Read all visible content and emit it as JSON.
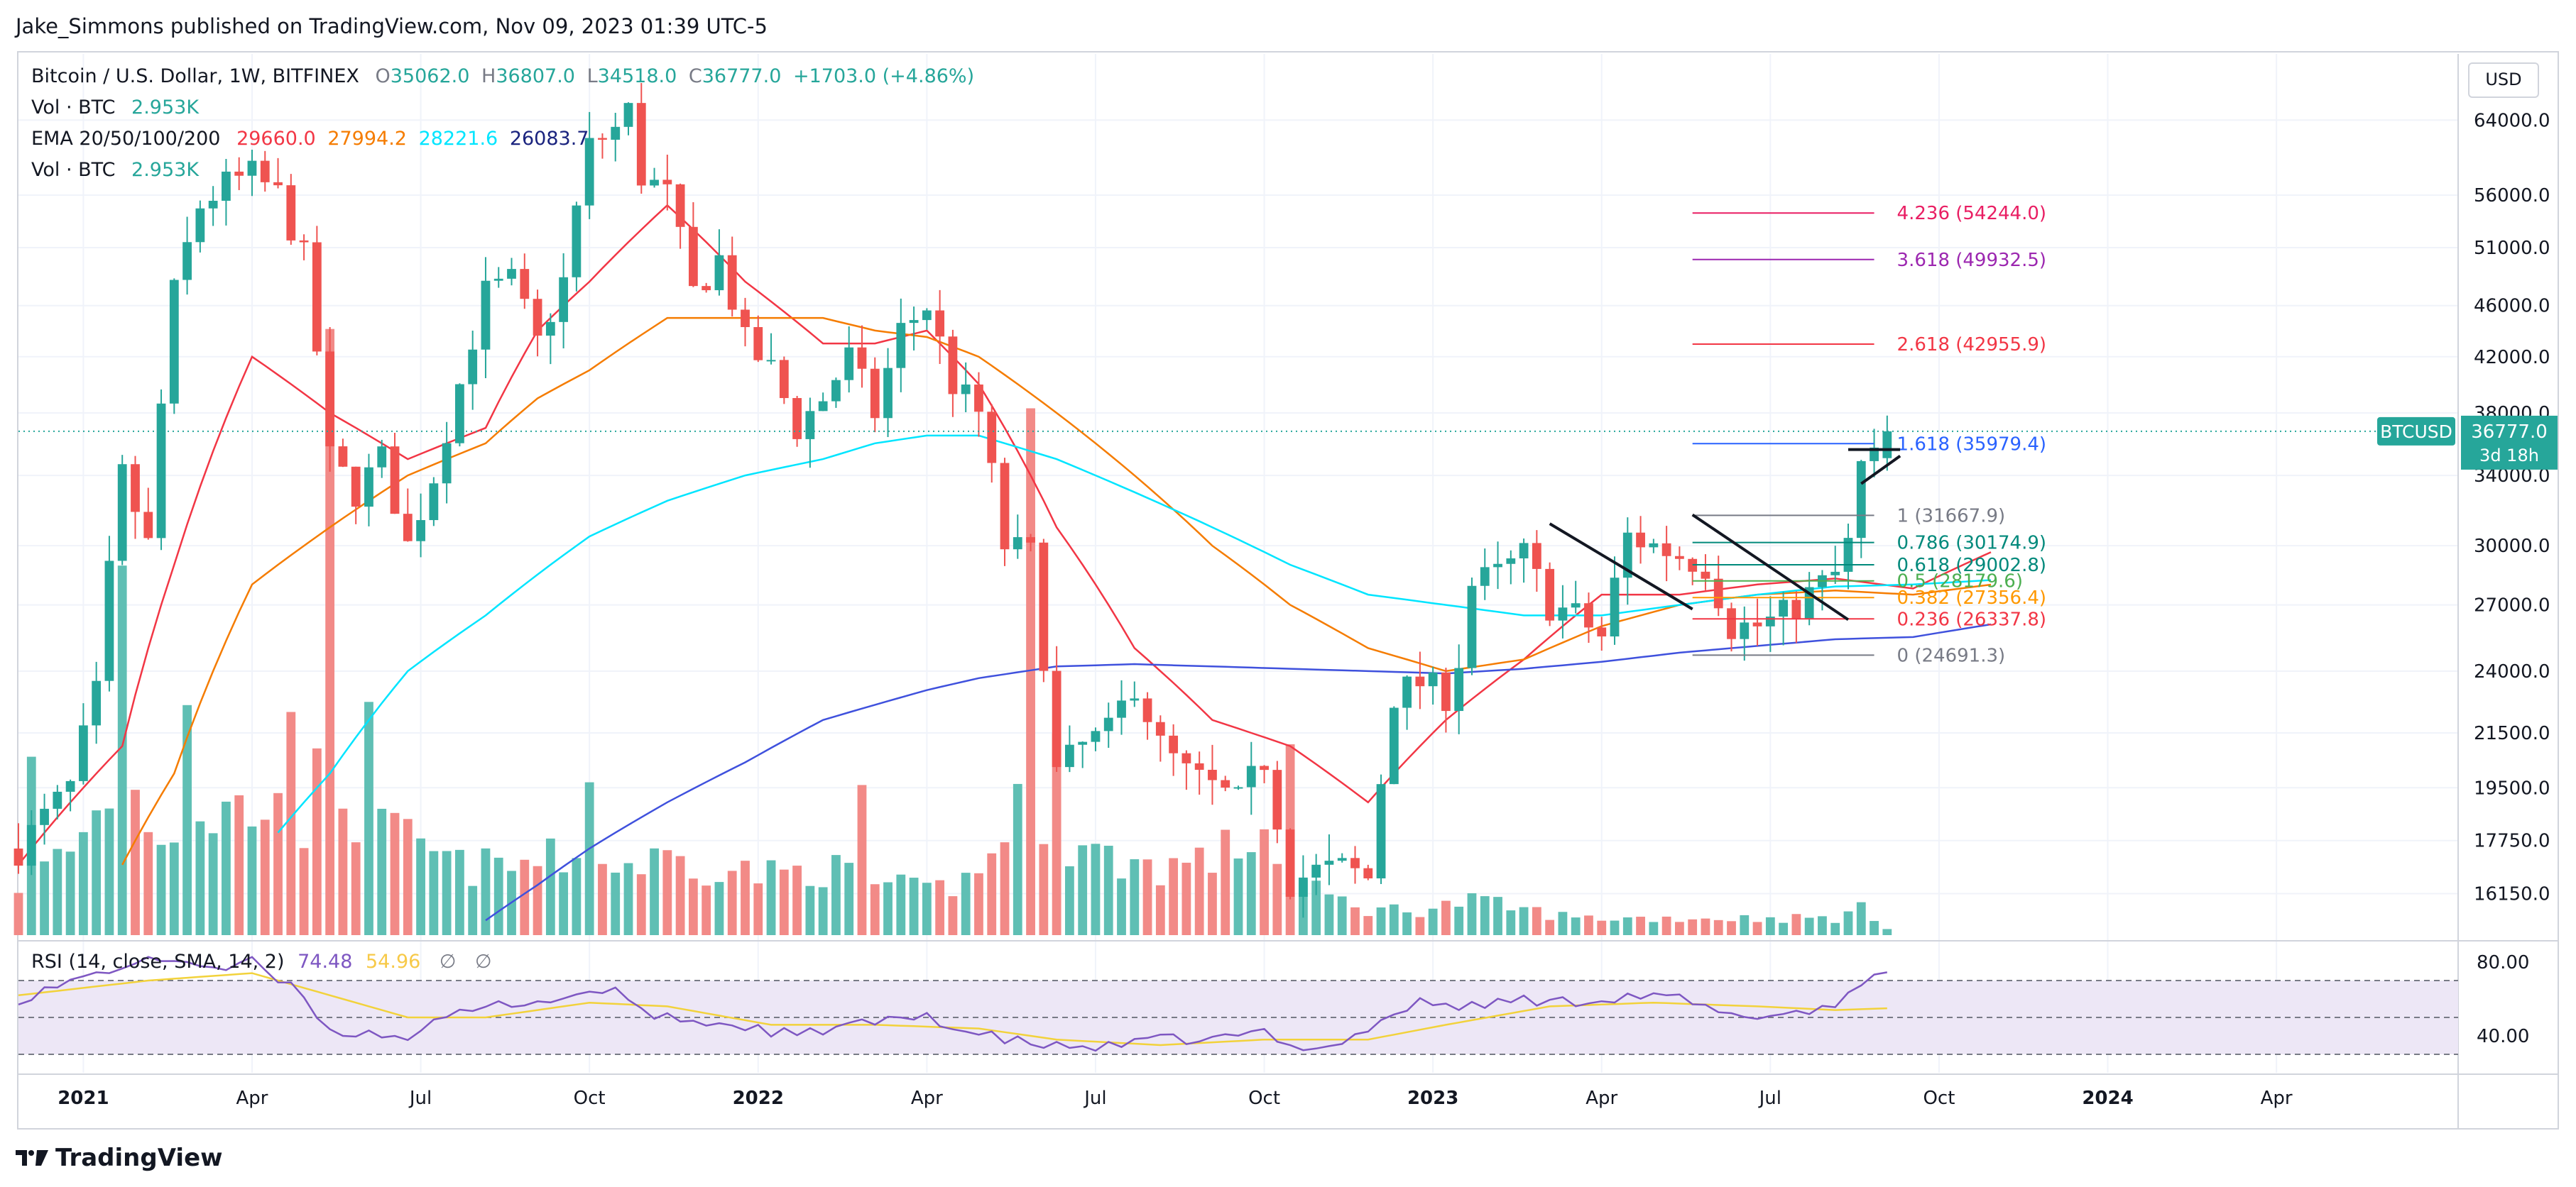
{
  "publisher_line": "Jake_Simmons published on TradingView.com, Nov 09, 2023 01:39 UTC-5",
  "brand": "TradingView",
  "currency_button": "USD",
  "legend": {
    "symbol": "Bitcoin / U.S. Dollar, 1W, BITFINEX",
    "open_label": "O",
    "open": "35062.0",
    "high_label": "H",
    "high": "36807.0",
    "low_label": "L",
    "low": "34518.0",
    "close_label": "C",
    "close": "36777.0",
    "change": "+1703.0 (+4.86%)",
    "vol_label": "Vol · BTC",
    "vol_value": "2.953K",
    "ema_label": "EMA 20/50/100/200",
    "ema20": "29660.0",
    "ema50": "27994.2",
    "ema100": "28221.6",
    "ema200": "26083.7",
    "vol2_label": "Vol · BTC",
    "vol2_value": "2.953K"
  },
  "rsi": {
    "label": "RSI (14, close, SMA, 14, 2)",
    "value": "74.48",
    "sma": "54.96",
    "icon1": "∅",
    "icon2": "∅",
    "levels": [
      80,
      40
    ],
    "upper_band": 70,
    "lower_band": 30,
    "mid": 50
  },
  "price_badge": {
    "symbol": "BTCUSD",
    "price": "36777.0",
    "countdown": "3d 18h"
  },
  "colors": {
    "up": "#26a69a",
    "down": "#ef5350",
    "vol_up": "#5fbfb4",
    "vol_down": "#f28a87",
    "ema20": "#f23645",
    "ema50": "#f57c00",
    "ema100": "#00e5ff",
    "ema200": "#3f51dd",
    "rsi": "#7e57c2",
    "rsi_sma": "#f2d23b",
    "rsi_band": "#ede7f6"
  },
  "chart_data": {
    "type": "candlestick",
    "title": "Bitcoin / U.S. Dollar, 1W, BITFINEX",
    "scale": "log",
    "ylim": [
      15000,
      72000
    ],
    "y_ticks": [
      "64000.0",
      "56000.0",
      "51000.0",
      "46000.0",
      "42000.0",
      "38000.0",
      "34000.0",
      "30000.0",
      "27000.0",
      "24000.0",
      "21500.0",
      "19500.0",
      "17750.0",
      "16150.0"
    ],
    "y_tick_values": [
      64000,
      56000,
      51000,
      46000,
      42000,
      38000,
      34000,
      30000,
      27000,
      24000,
      21500,
      19500,
      17750,
      16150
    ],
    "x_ticks": [
      "2021",
      "Apr",
      "Jul",
      "Oct",
      "2022",
      "Apr",
      "Jul",
      "Oct",
      "2023",
      "Apr",
      "Jul",
      "Oct",
      "2024",
      "Apr"
    ],
    "x_tick_weeks": [
      5,
      18,
      31,
      44,
      57,
      70,
      83,
      96,
      109,
      122,
      135,
      148,
      161,
      174
    ],
    "bold_x_ticks": [
      "2021",
      "2022",
      "2023",
      "2024"
    ],
    "anchor_ema": [
      [
        0,
        17000,
        14500,
        11000,
        9000
      ],
      [
        8,
        21000,
        17000,
        13000,
        10000
      ],
      [
        12,
        29000,
        20000,
        14000,
        10500
      ],
      [
        18,
        42000,
        28000,
        17000,
        11700
      ],
      [
        24,
        38000,
        31000,
        20000,
        12800
      ],
      [
        30,
        35000,
        34000,
        24000,
        14300
      ],
      [
        36,
        37000,
        36000,
        26500,
        15400
      ],
      [
        40,
        44000,
        39000,
        28500,
        16400
      ],
      [
        44,
        48000,
        41000,
        30500,
        17500
      ],
      [
        50,
        55000,
        45000,
        32500,
        19000
      ],
      [
        56,
        48000,
        45000,
        34000,
        20400
      ],
      [
        62,
        43000,
        45000,
        35000,
        22000
      ],
      [
        66,
        43000,
        44000,
        36000,
        22600
      ],
      [
        70,
        44000,
        43500,
        36500,
        23200
      ],
      [
        74,
        40000,
        42000,
        36500,
        23700
      ],
      [
        80,
        31000,
        38000,
        35000,
        24200
      ],
      [
        86,
        25000,
        34000,
        33000,
        24300
      ],
      [
        92,
        22000,
        30000,
        31000,
        24200
      ],
      [
        98,
        21000,
        27000,
        29000,
        24100
      ],
      [
        104,
        19000,
        25000,
        27500,
        24000
      ],
      [
        110,
        22000,
        24000,
        27000,
        23900
      ],
      [
        116,
        24500,
        24500,
        26500,
        24100
      ],
      [
        122,
        27500,
        26000,
        26500,
        24400
      ],
      [
        128,
        27500,
        27000,
        27000,
        24800
      ],
      [
        134,
        28000,
        27500,
        27500,
        25100
      ],
      [
        140,
        28300,
        27700,
        27900,
        25400
      ],
      [
        146,
        27800,
        27500,
        28000,
        25500
      ],
      [
        152,
        29660,
        27994,
        28221,
        26083
      ]
    ],
    "anchor_close": [
      [
        0,
        17500
      ],
      [
        4,
        19500
      ],
      [
        6,
        23000
      ],
      [
        8,
        34000
      ],
      [
        10,
        30000
      ],
      [
        12,
        47000
      ],
      [
        14,
        55000
      ],
      [
        16,
        57000
      ],
      [
        18,
        58000
      ],
      [
        20,
        56000
      ],
      [
        22,
        50000
      ],
      [
        24,
        35000
      ],
      [
        26,
        33000
      ],
      [
        28,
        35000
      ],
      [
        30,
        30000
      ],
      [
        32,
        34000
      ],
      [
        34,
        40000
      ],
      [
        36,
        47000
      ],
      [
        38,
        48000
      ],
      [
        40,
        43000
      ],
      [
        42,
        48000
      ],
      [
        44,
        61000
      ],
      [
        46,
        63000
      ],
      [
        47,
        65000
      ],
      [
        48,
        58000
      ],
      [
        50,
        56000
      ],
      [
        52,
        47000
      ],
      [
        54,
        50000
      ],
      [
        56,
        43000
      ],
      [
        58,
        41000
      ],
      [
        60,
        37000
      ],
      [
        62,
        39000
      ],
      [
        64,
        42000
      ],
      [
        66,
        38000
      ],
      [
        68,
        44000
      ],
      [
        70,
        46000
      ],
      [
        72,
        40000
      ],
      [
        74,
        38000
      ],
      [
        76,
        30000
      ],
      [
        78,
        29500
      ],
      [
        80,
        20000
      ],
      [
        82,
        21000
      ],
      [
        84,
        21500
      ],
      [
        86,
        23500
      ],
      [
        88,
        21000
      ],
      [
        90,
        20000
      ],
      [
        92,
        19500
      ],
      [
        94,
        19000
      ],
      [
        96,
        20500
      ],
      [
        98,
        16500
      ],
      [
        100,
        16800
      ],
      [
        102,
        16900
      ],
      [
        104,
        16600
      ],
      [
        106,
        23000
      ],
      [
        108,
        23500
      ],
      [
        110,
        23000
      ],
      [
        111,
        24500
      ],
      [
        112,
        28000
      ],
      [
        114,
        28500
      ],
      [
        116,
        29500
      ],
      [
        118,
        27000
      ],
      [
        120,
        26500
      ],
      [
        122,
        25500
      ],
      [
        124,
        30500
      ],
      [
        126,
        30000
      ],
      [
        128,
        29500
      ],
      [
        130,
        29000
      ],
      [
        132,
        26000
      ],
      [
        134,
        26000
      ],
      [
        136,
        26500
      ],
      [
        138,
        27500
      ],
      [
        140,
        28500
      ],
      [
        141,
        30000
      ],
      [
        142,
        34500
      ],
      [
        143,
        35000
      ],
      [
        144,
        36777
      ]
    ],
    "volume_profile": [
      [
        0,
        6
      ],
      [
        4,
        10
      ],
      [
        6,
        14
      ],
      [
        8,
        19
      ],
      [
        10,
        14
      ],
      [
        12,
        12
      ],
      [
        14,
        14
      ],
      [
        18,
        15
      ],
      [
        22,
        13
      ],
      [
        24,
        22
      ],
      [
        26,
        13
      ],
      [
        30,
        11
      ],
      [
        34,
        8
      ],
      [
        38,
        8
      ],
      [
        42,
        9
      ],
      [
        46,
        8
      ],
      [
        50,
        9
      ],
      [
        54,
        8
      ],
      [
        58,
        7
      ],
      [
        62,
        8
      ],
      [
        66,
        6
      ],
      [
        70,
        5
      ],
      [
        74,
        7
      ],
      [
        78,
        19
      ],
      [
        80,
        11
      ],
      [
        84,
        9
      ],
      [
        88,
        8
      ],
      [
        92,
        9
      ],
      [
        96,
        12
      ],
      [
        98,
        8
      ],
      [
        100,
        5
      ],
      [
        104,
        3
      ],
      [
        108,
        3
      ],
      [
        112,
        4
      ],
      [
        116,
        3
      ],
      [
        120,
        2
      ],
      [
        124,
        2
      ],
      [
        128,
        2
      ],
      [
        132,
        2
      ],
      [
        136,
        2
      ],
      [
        140,
        2
      ],
      [
        142,
        3
      ],
      [
        144,
        1
      ]
    ],
    "volume_spikes": [
      [
        1,
        1
      ],
      [
        8,
        1
      ],
      [
        13,
        1
      ],
      [
        21,
        1
      ],
      [
        24,
        1
      ],
      [
        27,
        1
      ],
      [
        44,
        1
      ],
      [
        65,
        1
      ],
      [
        78,
        1
      ],
      [
        80,
        1
      ],
      [
        98,
        1
      ]
    ],
    "rsi_anchors": [
      [
        0,
        60
      ],
      [
        8,
        78
      ],
      [
        12,
        82
      ],
      [
        16,
        76
      ],
      [
        18,
        80
      ],
      [
        20,
        70
      ],
      [
        22,
        62
      ],
      [
        24,
        42
      ],
      [
        26,
        42
      ],
      [
        30,
        40
      ],
      [
        34,
        52
      ],
      [
        38,
        58
      ],
      [
        42,
        60
      ],
      [
        44,
        64
      ],
      [
        46,
        66
      ],
      [
        48,
        52
      ],
      [
        52,
        48
      ],
      [
        56,
        45
      ],
      [
        60,
        40
      ],
      [
        64,
        46
      ],
      [
        68,
        48
      ],
      [
        70,
        52
      ],
      [
        72,
        44
      ],
      [
        76,
        38
      ],
      [
        80,
        34
      ],
      [
        84,
        34
      ],
      [
        88,
        38
      ],
      [
        92,
        38
      ],
      [
        96,
        42
      ],
      [
        98,
        34
      ],
      [
        102,
        36
      ],
      [
        106,
        52
      ],
      [
        108,
        58
      ],
      [
        112,
        56
      ],
      [
        116,
        60
      ],
      [
        118,
        58
      ],
      [
        122,
        60
      ],
      [
        124,
        62
      ],
      [
        128,
        60
      ],
      [
        132,
        50
      ],
      [
        136,
        52
      ],
      [
        140,
        56
      ],
      [
        142,
        70
      ],
      [
        144,
        74.48
      ]
    ],
    "rsi_sma_anchors": [
      [
        0,
        62
      ],
      [
        10,
        70
      ],
      [
        18,
        74
      ],
      [
        24,
        62
      ],
      [
        30,
        50
      ],
      [
        36,
        50
      ],
      [
        44,
        58
      ],
      [
        50,
        56
      ],
      [
        58,
        46
      ],
      [
        66,
        46
      ],
      [
        74,
        44
      ],
      [
        80,
        38
      ],
      [
        88,
        35
      ],
      [
        96,
        38
      ],
      [
        104,
        38
      ],
      [
        110,
        46
      ],
      [
        118,
        56
      ],
      [
        126,
        58
      ],
      [
        134,
        56
      ],
      [
        140,
        54
      ],
      [
        144,
        54.96
      ]
    ],
    "fibonacci": {
      "start_week": 129,
      "end_week": 143,
      "levels": [
        {
          "ratio": "4.236",
          "price": 54244.0,
          "label": "4.236 (54244.0)",
          "color": "#e91e63"
        },
        {
          "ratio": "3.618",
          "price": 49932.5,
          "label": "3.618 (49932.5)",
          "color": "#9c27b0"
        },
        {
          "ratio": "2.618",
          "price": 42955.9,
          "label": "2.618 (42955.9)",
          "color": "#f23645"
        },
        {
          "ratio": "1.618",
          "price": 35979.4,
          "label": "1.618 (35979.4)",
          "color": "#2962ff"
        },
        {
          "ratio": "1",
          "price": 31667.9,
          "label": "1 (31667.9)",
          "color": "#787b86"
        },
        {
          "ratio": "0.786",
          "price": 30174.9,
          "label": "0.786 (30174.9)",
          "color": "#00897b"
        },
        {
          "ratio": "0.618",
          "price": 29002.8,
          "label": "0.618 (29002.8)",
          "color": "#00897b"
        },
        {
          "ratio": "0.5",
          "price": 28179.6,
          "label": "0.5 (28179.6)",
          "color": "#4caf50"
        },
        {
          "ratio": "0.382",
          "price": 27356.4,
          "label": "0.382 (27356.4)",
          "color": "#ff9800"
        },
        {
          "ratio": "0.236",
          "price": 26337.8,
          "label": "0.236 (26337.8)",
          "color": "#f23645"
        },
        {
          "ratio": "0",
          "price": 24691.3,
          "label": "0 (24691.3)",
          "color": "#787b86"
        }
      ]
    },
    "trendlines": [
      {
        "from": [
          118,
          31200
        ],
        "to": [
          129,
          26800
        ]
      },
      {
        "from": [
          129,
          31700
        ],
        "to": [
          141,
          26300
        ]
      },
      {
        "from": [
          141,
          35600
        ],
        "to": [
          145,
          35600
        ]
      },
      {
        "from": [
          142,
          33500
        ],
        "to": [
          145,
          35200
        ]
      }
    ],
    "last_price": 36777.0
  }
}
